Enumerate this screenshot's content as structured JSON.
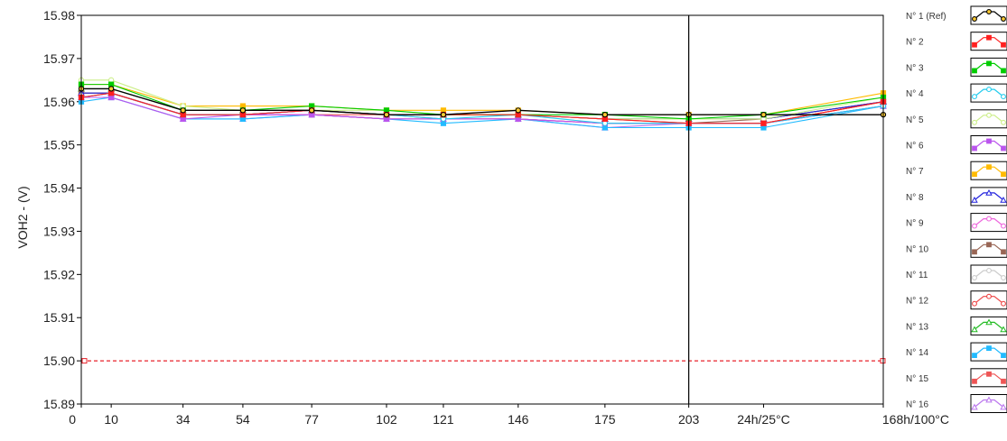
{
  "chart_data": {
    "type": "line",
    "title": "",
    "ylabel": "VOH2 - (V)",
    "xlabel": "",
    "categories": [
      "0",
      "10",
      "34",
      "54",
      "77",
      "102",
      "121",
      "146",
      "175",
      "203",
      "24h/25°C",
      "168h/100°C"
    ],
    "x_numeric": [
      0,
      10,
      34,
      54,
      77,
      102,
      121,
      146,
      175,
      203,
      228,
      268
    ],
    "xlim": [
      0,
      268
    ],
    "ylim": [
      15.89,
      15.98
    ],
    "yticks": [
      "15.98",
      "15.97",
      "15.96",
      "15.95",
      "15.94",
      "15.93",
      "15.92",
      "15.91",
      "15.90",
      "15.89"
    ],
    "grid": false,
    "legend_position": "right",
    "cursor_x": 203,
    "limit_line": {
      "y": 15.9,
      "color": "#e8202a",
      "style": "dashed"
    },
    "series": [
      {
        "name": "N° 1 (Ref)",
        "color": "#000000",
        "marker": "circle",
        "values": [
          15.963,
          15.963,
          15.958,
          15.958,
          15.958,
          15.957,
          15.957,
          15.958,
          15.957,
          15.957,
          15.957,
          15.957
        ]
      },
      {
        "name": "N° 2",
        "color": "#ff2020",
        "marker": "square",
        "values": [
          15.961,
          15.962,
          15.957,
          15.957,
          15.958,
          15.957,
          15.957,
          15.957,
          15.956,
          15.955,
          15.955,
          15.96
        ]
      },
      {
        "name": "N° 3",
        "color": "#00cc00",
        "marker": "square",
        "values": [
          15.964,
          15.964,
          15.958,
          15.958,
          15.959,
          15.958,
          15.957,
          15.957,
          15.957,
          15.956,
          15.957,
          15.961
        ]
      },
      {
        "name": "N° 4",
        "color": "#22ccee",
        "marker": "circle",
        "values": [
          15.961,
          15.962,
          15.957,
          15.957,
          15.958,
          15.957,
          15.956,
          15.957,
          15.955,
          15.955,
          15.955,
          15.959
        ]
      },
      {
        "name": "N° 5",
        "color": "#ccee88",
        "marker": "circle",
        "values": [
          15.965,
          15.965,
          15.959,
          15.958,
          15.958,
          15.958,
          15.957,
          15.957,
          15.956,
          15.956,
          15.956,
          15.961
        ]
      },
      {
        "name": "N° 6",
        "color": "#bb55ee",
        "marker": "square",
        "values": [
          15.961,
          15.961,
          15.956,
          15.957,
          15.957,
          15.956,
          15.956,
          15.956,
          15.955,
          15.955,
          15.955,
          15.959
        ]
      },
      {
        "name": "N° 7",
        "color": "#ffbb00",
        "marker": "square",
        "values": [
          15.964,
          15.964,
          15.959,
          15.959,
          15.959,
          15.958,
          15.958,
          15.958,
          15.957,
          15.957,
          15.957,
          15.962
        ]
      },
      {
        "name": "N° 8",
        "color": "#2222dd",
        "marker": "triangle",
        "values": [
          15.962,
          15.962,
          15.957,
          15.957,
          15.958,
          15.957,
          15.957,
          15.957,
          15.956,
          15.956,
          15.956,
          15.96
        ]
      },
      {
        "name": "N° 9",
        "color": "#ee66dd",
        "marker": "circle",
        "values": [
          15.961,
          15.962,
          15.957,
          15.957,
          15.957,
          15.956,
          15.956,
          15.956,
          15.955,
          15.955,
          15.955,
          15.959
        ]
      },
      {
        "name": "N° 10",
        "color": "#996655",
        "marker": "square",
        "values": [
          15.962,
          15.962,
          15.957,
          15.957,
          15.958,
          15.957,
          15.957,
          15.957,
          15.956,
          15.955,
          15.956,
          15.96
        ]
      },
      {
        "name": "N° 11",
        "color": "#cccccc",
        "marker": "circle",
        "values": [
          15.962,
          15.962,
          15.957,
          15.957,
          15.958,
          15.957,
          15.957,
          15.957,
          15.956,
          15.956,
          15.956,
          15.96
        ]
      },
      {
        "name": "N° 12",
        "color": "#ee4444",
        "marker": "circle",
        "values": [
          15.961,
          15.962,
          15.957,
          15.957,
          15.957,
          15.956,
          15.956,
          15.956,
          15.955,
          15.955,
          15.955,
          15.96
        ]
      },
      {
        "name": "N° 13",
        "color": "#22bb22",
        "marker": "triangle",
        "values": [
          15.963,
          15.963,
          15.958,
          15.958,
          15.958,
          15.957,
          15.957,
          15.957,
          15.956,
          15.956,
          15.956,
          15.96
        ]
      },
      {
        "name": "N° 14",
        "color": "#22bbff",
        "marker": "square",
        "values": [
          15.96,
          15.961,
          15.956,
          15.956,
          15.957,
          15.956,
          15.955,
          15.956,
          15.954,
          15.954,
          15.954,
          15.959
        ]
      },
      {
        "name": "N° 15",
        "color": "#ee5555",
        "marker": "square",
        "values": [
          15.962,
          15.962,
          15.957,
          15.957,
          15.957,
          15.957,
          15.956,
          15.956,
          15.955,
          15.955,
          15.955,
          15.96
        ]
      },
      {
        "name": "N° 16",
        "color": "#bb77ee",
        "marker": "triangle",
        "values": [
          15.961,
          15.961,
          15.956,
          15.956,
          15.957,
          15.956,
          15.956,
          15.956,
          15.954,
          15.955,
          15.955,
          15.959
        ]
      }
    ]
  }
}
